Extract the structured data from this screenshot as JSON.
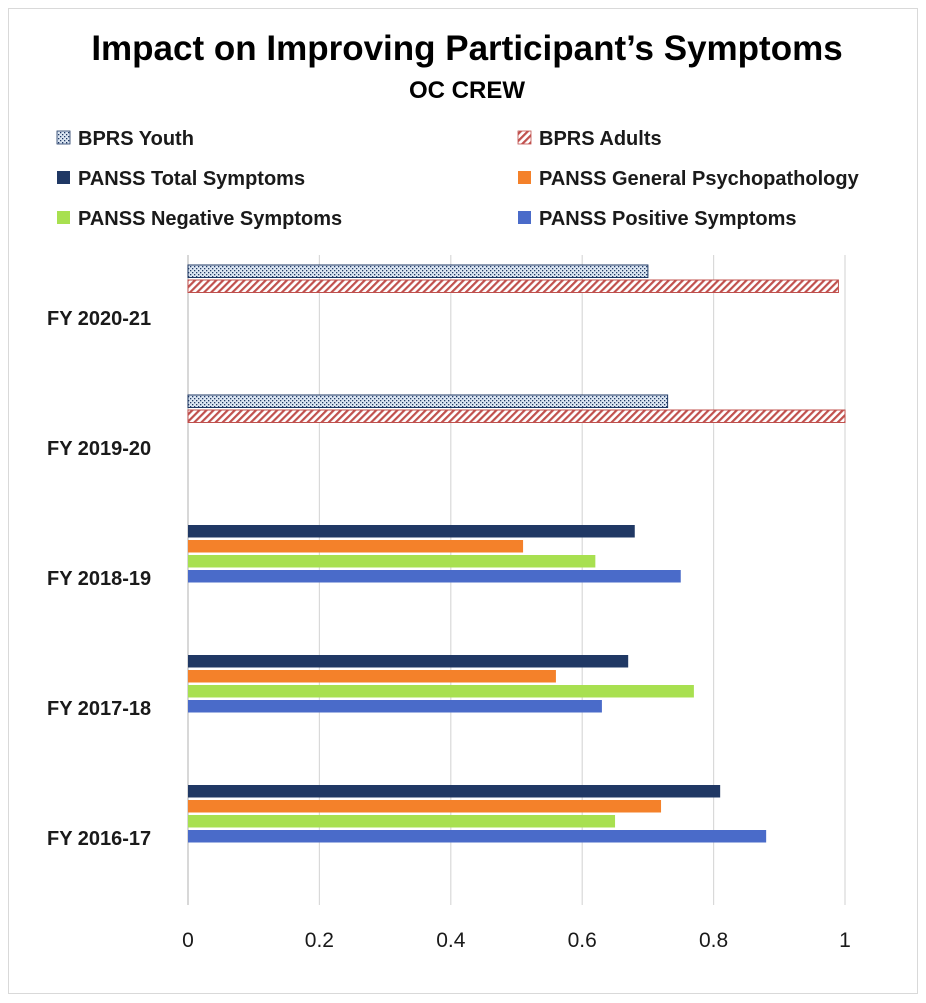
{
  "chart_data": {
    "type": "bar",
    "orientation": "horizontal",
    "title": "Impact on Improving Participant’s Symptoms",
    "subtitle": "OC CREW",
    "xlabel": "",
    "ylabel": "",
    "xlim": [
      0,
      1
    ],
    "xticks": [
      0,
      0.2,
      0.4,
      0.6,
      0.8,
      1
    ],
    "xtick_labels": [
      "0",
      "0.2",
      "0.4",
      "0.6",
      "0.8",
      "1"
    ],
    "grid": true,
    "legend_position": "top",
    "categories": [
      "FY 2020-21",
      "FY 2019-20",
      "FY 2018-19",
      "FY 2017-18",
      "FY 2016-17"
    ],
    "series": [
      {
        "name": "BPRS Youth",
        "color": "#dce6f2",
        "pattern": "dots",
        "values": [
          0.7,
          0.73,
          null,
          null,
          null
        ]
      },
      {
        "name": "BPRS Adults",
        "color": "#c0504d",
        "pattern": "hatch",
        "values": [
          0.99,
          1.0,
          null,
          null,
          null
        ]
      },
      {
        "name": "PANSS Total Symptoms",
        "color": "#203864",
        "pattern": "solid",
        "values": [
          null,
          null,
          0.68,
          0.67,
          0.81
        ]
      },
      {
        "name": "PANSS General Psychopathology",
        "color": "#f4812a",
        "pattern": "solid",
        "values": [
          null,
          null,
          0.51,
          0.56,
          0.72
        ]
      },
      {
        "name": "PANSS Negative Symptoms",
        "color": "#a8e050",
        "pattern": "solid",
        "values": [
          null,
          null,
          0.62,
          0.77,
          0.65
        ]
      },
      {
        "name": "PANSS Positive Symptoms",
        "color": "#4a6bc9",
        "pattern": "solid",
        "values": [
          null,
          null,
          0.75,
          0.63,
          0.88
        ]
      }
    ]
  }
}
